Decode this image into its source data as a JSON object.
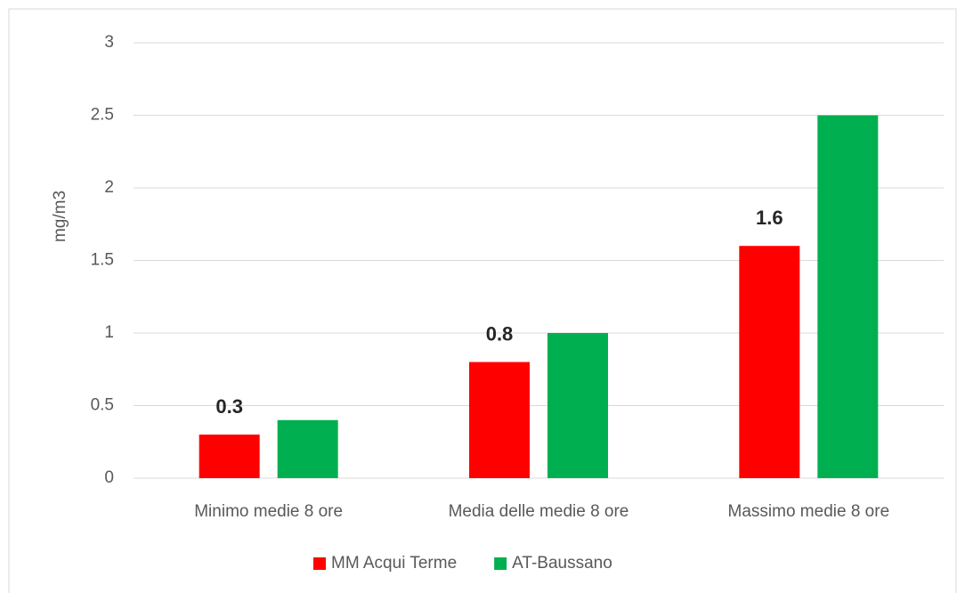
{
  "chart_data": {
    "type": "bar",
    "y_label": "mg/m3",
    "categories": [
      "Minimo medie 8 ore",
      "Media delle medie 8 ore",
      "Massimo medie 8 ore"
    ],
    "series": [
      {
        "name": "MM Acqui Terme",
        "color": "#ff0000",
        "values": [
          0.3,
          0.8,
          1.6
        ],
        "data_labels": true
      },
      {
        "name": "AT-Baussano",
        "color": "#00b050",
        "values": [
          0.4,
          1.0,
          2.5
        ],
        "data_labels": false
      }
    ],
    "ylim": [
      0,
      3
    ],
    "yticks": [
      0,
      0.5,
      1,
      1.5,
      2,
      2.5,
      3
    ],
    "grid": true,
    "legend": "bottom"
  }
}
